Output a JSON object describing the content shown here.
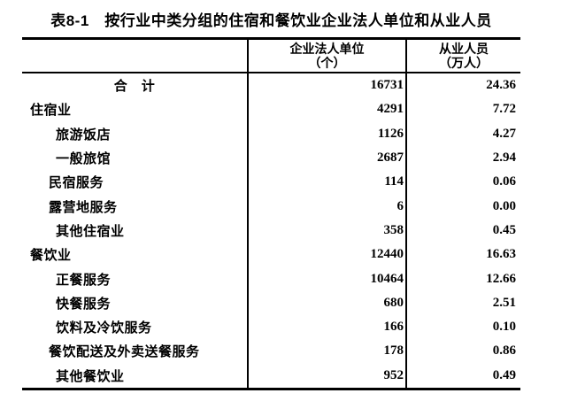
{
  "title": "表8-1　按行业中类分组的住宿和餐饮业企业法人单位和从业人员",
  "table": {
    "columns": [
      {
        "line1": "企业法人单位",
        "line2": "（个）"
      },
      {
        "line1": "从业人员",
        "line2": "（万人）"
      }
    ],
    "rows": [
      {
        "label": "合　计",
        "units": "16731",
        "employees": "24.36"
      },
      {
        "label": "住宿业",
        "units": "4291",
        "employees": "7.72"
      },
      {
        "label": "旅游饭店",
        "units": "1126",
        "employees": "4.27"
      },
      {
        "label": "一般旅馆",
        "units": "2687",
        "employees": "2.94"
      },
      {
        "label": "民宿服务",
        "units": "114",
        "employees": "0.06"
      },
      {
        "label": "露营地服务",
        "units": "6",
        "employees": "0.00"
      },
      {
        "label": "其他住宿业",
        "units": "358",
        "employees": "0.45"
      },
      {
        "label": "餐饮业",
        "units": "12440",
        "employees": "16.63"
      },
      {
        "label": "正餐服务",
        "units": "10464",
        "employees": "12.66"
      },
      {
        "label": "快餐服务",
        "units": "680",
        "employees": "2.51"
      },
      {
        "label": "饮料及冷饮服务",
        "units": "166",
        "employees": "0.10"
      },
      {
        "label": "餐饮配送及外卖送餐服务",
        "units": "178",
        "employees": "0.86"
      },
      {
        "label": "其他餐饮业",
        "units": "952",
        "employees": "0.49"
      }
    ]
  }
}
